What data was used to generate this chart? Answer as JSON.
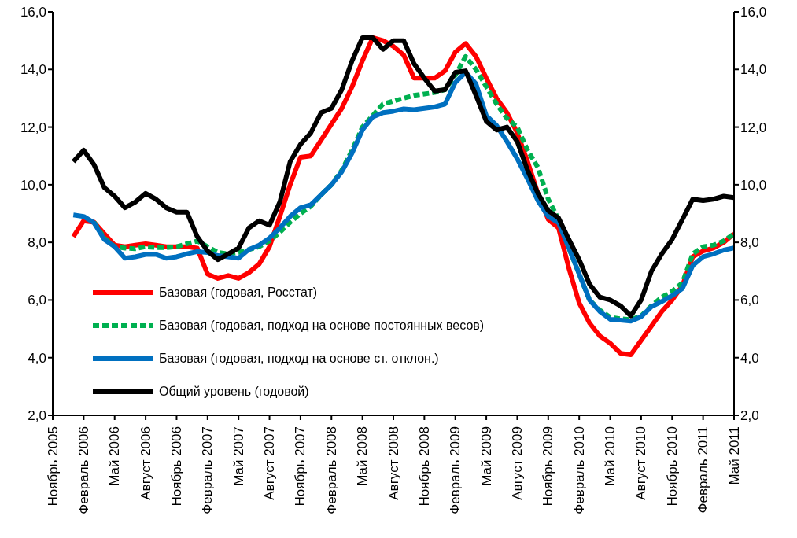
{
  "chart_data": {
    "type": "line",
    "categories": [
      "Ноябрь 2005",
      null,
      null,
      "Февраль 2006",
      null,
      null,
      "Май 2006",
      null,
      null,
      "Август 2006",
      null,
      null,
      "Ноябрь 2006",
      null,
      null,
      "Февраль 2007",
      null,
      null,
      "Май 2007",
      null,
      null,
      "Август 2007",
      null,
      null,
      "Ноябрь 2007",
      null,
      null,
      "Февраль 2008",
      null,
      null,
      "Май 2008",
      null,
      null,
      "Август 2008",
      null,
      null,
      "Ноябрь 2008",
      null,
      null,
      "Февраль 2009",
      null,
      null,
      "Май 2009",
      null,
      null,
      "Август 2009",
      null,
      null,
      "Ноябрь 2009",
      null,
      null,
      "Февраль 2010",
      null,
      null,
      "Май 2010",
      null,
      null,
      "Август 2010",
      null,
      null,
      "Ноябрь 2010",
      null,
      null,
      "Февраль 2011",
      null,
      null,
      "Май 2011"
    ],
    "series": [
      {
        "name": "Базовая (годовая, Росстат)",
        "color": "#ff0000",
        "values": [
          null,
          null,
          8.2,
          8.75,
          8.7,
          8.3,
          7.9,
          7.85,
          7.9,
          7.95,
          7.9,
          7.85,
          7.85,
          7.85,
          7.8,
          6.9,
          6.75,
          6.85,
          6.75,
          6.95,
          7.25,
          7.85,
          8.9,
          10.0,
          10.95,
          11.0,
          11.55,
          12.1,
          12.65,
          13.4,
          14.3,
          15.1,
          15.0,
          14.8,
          14.5,
          13.7,
          13.7,
          13.7,
          13.95,
          14.6,
          14.9,
          14.45,
          13.7,
          13.0,
          12.5,
          11.8,
          10.8,
          9.7,
          8.8,
          8.5,
          7.1,
          5.9,
          5.2,
          4.75,
          4.5,
          4.15,
          4.1,
          4.6,
          5.1,
          5.6,
          6.0,
          6.5,
          7.5,
          7.7,
          7.8,
          8.0,
          8.3
        ]
      },
      {
        "name": "Базовая (годовая, подход на основе постоянных весов)",
        "color": "#00b050",
        "line_style": "dashed",
        "values": [
          null,
          null,
          null,
          null,
          8.7,
          8.15,
          7.85,
          7.8,
          7.78,
          7.85,
          7.82,
          7.82,
          7.85,
          7.95,
          8.05,
          7.85,
          7.65,
          7.6,
          7.65,
          7.75,
          7.85,
          8.05,
          8.35,
          8.7,
          9.0,
          9.25,
          9.65,
          10.0,
          10.5,
          11.2,
          12.0,
          12.4,
          12.8,
          12.9,
          13.0,
          13.1,
          13.15,
          13.2,
          13.3,
          13.8,
          14.45,
          14.0,
          13.4,
          12.8,
          12.3,
          12.0,
          11.2,
          10.6,
          9.5,
          8.8,
          7.8,
          6.9,
          6.0,
          5.65,
          5.4,
          5.35,
          5.32,
          5.45,
          5.8,
          6.1,
          6.3,
          6.6,
          7.6,
          7.85,
          7.9,
          8.05,
          8.3
        ]
      },
      {
        "name": "Базовая (годовая, подход на основе ст. отклон.)",
        "color": "#0070c0",
        "values": [
          null,
          null,
          8.95,
          8.9,
          8.68,
          8.1,
          7.85,
          7.45,
          7.5,
          7.58,
          7.58,
          7.45,
          7.5,
          7.6,
          7.68,
          7.65,
          7.54,
          7.5,
          7.45,
          7.75,
          7.9,
          8.15,
          8.5,
          8.9,
          9.2,
          9.3,
          9.65,
          10.0,
          10.45,
          11.1,
          11.9,
          12.35,
          12.5,
          12.55,
          12.63,
          12.6,
          12.65,
          12.7,
          12.8,
          13.55,
          13.9,
          13.5,
          12.4,
          12.05,
          11.5,
          10.9,
          10.2,
          9.45,
          8.9,
          8.68,
          7.8,
          6.9,
          6.0,
          5.6,
          5.33,
          5.3,
          5.27,
          5.42,
          5.77,
          5.95,
          6.15,
          6.4,
          7.2,
          7.5,
          7.6,
          7.73,
          7.81
        ]
      },
      {
        "name": "Общий уровень (годовой)",
        "color": "#000000",
        "values": [
          null,
          null,
          10.8,
          11.2,
          10.7,
          9.9,
          9.6,
          9.2,
          9.4,
          9.7,
          9.5,
          9.2,
          9.05,
          9.05,
          8.2,
          7.7,
          7.4,
          7.6,
          7.8,
          8.5,
          8.75,
          8.6,
          9.4,
          10.8,
          11.4,
          11.8,
          12.5,
          12.65,
          13.3,
          14.3,
          15.1,
          15.1,
          14.7,
          15.0,
          15.0,
          14.2,
          13.7,
          13.25,
          13.3,
          13.9,
          13.95,
          13.1,
          12.2,
          11.9,
          12.0,
          11.5,
          10.5,
          9.7,
          9.1,
          8.85,
          8.1,
          7.4,
          6.55,
          6.1,
          6.0,
          5.8,
          5.45,
          6.0,
          7.0,
          7.6,
          8.1,
          8.8,
          9.5,
          9.45,
          9.5,
          9.6,
          9.55
        ]
      }
    ],
    "ylim": [
      2,
      16
    ],
    "yticks": [
      {
        "value": 2,
        "label": "2,0"
      },
      {
        "value": 4,
        "label": "4,0"
      },
      {
        "value": 6,
        "label": "6,0"
      },
      {
        "value": 8,
        "label": "8,0"
      },
      {
        "value": 10,
        "label": "10,0"
      },
      {
        "value": 12,
        "label": "12,0"
      },
      {
        "value": 14,
        "label": "14,0"
      },
      {
        "value": 16,
        "label": "16,0"
      }
    ],
    "y2lim": [
      2,
      16
    ],
    "y2ticks": [
      {
        "value": 2,
        "label": "2,0"
      },
      {
        "value": 4,
        "label": "4,0"
      },
      {
        "value": 6,
        "label": "6,0"
      },
      {
        "value": 8,
        "label": "8,0"
      },
      {
        "value": 10,
        "label": "10,0"
      },
      {
        "value": 12,
        "label": "12,0"
      },
      {
        "value": 14,
        "label": "14,0"
      },
      {
        "value": 16,
        "label": "16,0"
      }
    ],
    "grid": false,
    "legend": "bottom left",
    "marker": "none"
  }
}
